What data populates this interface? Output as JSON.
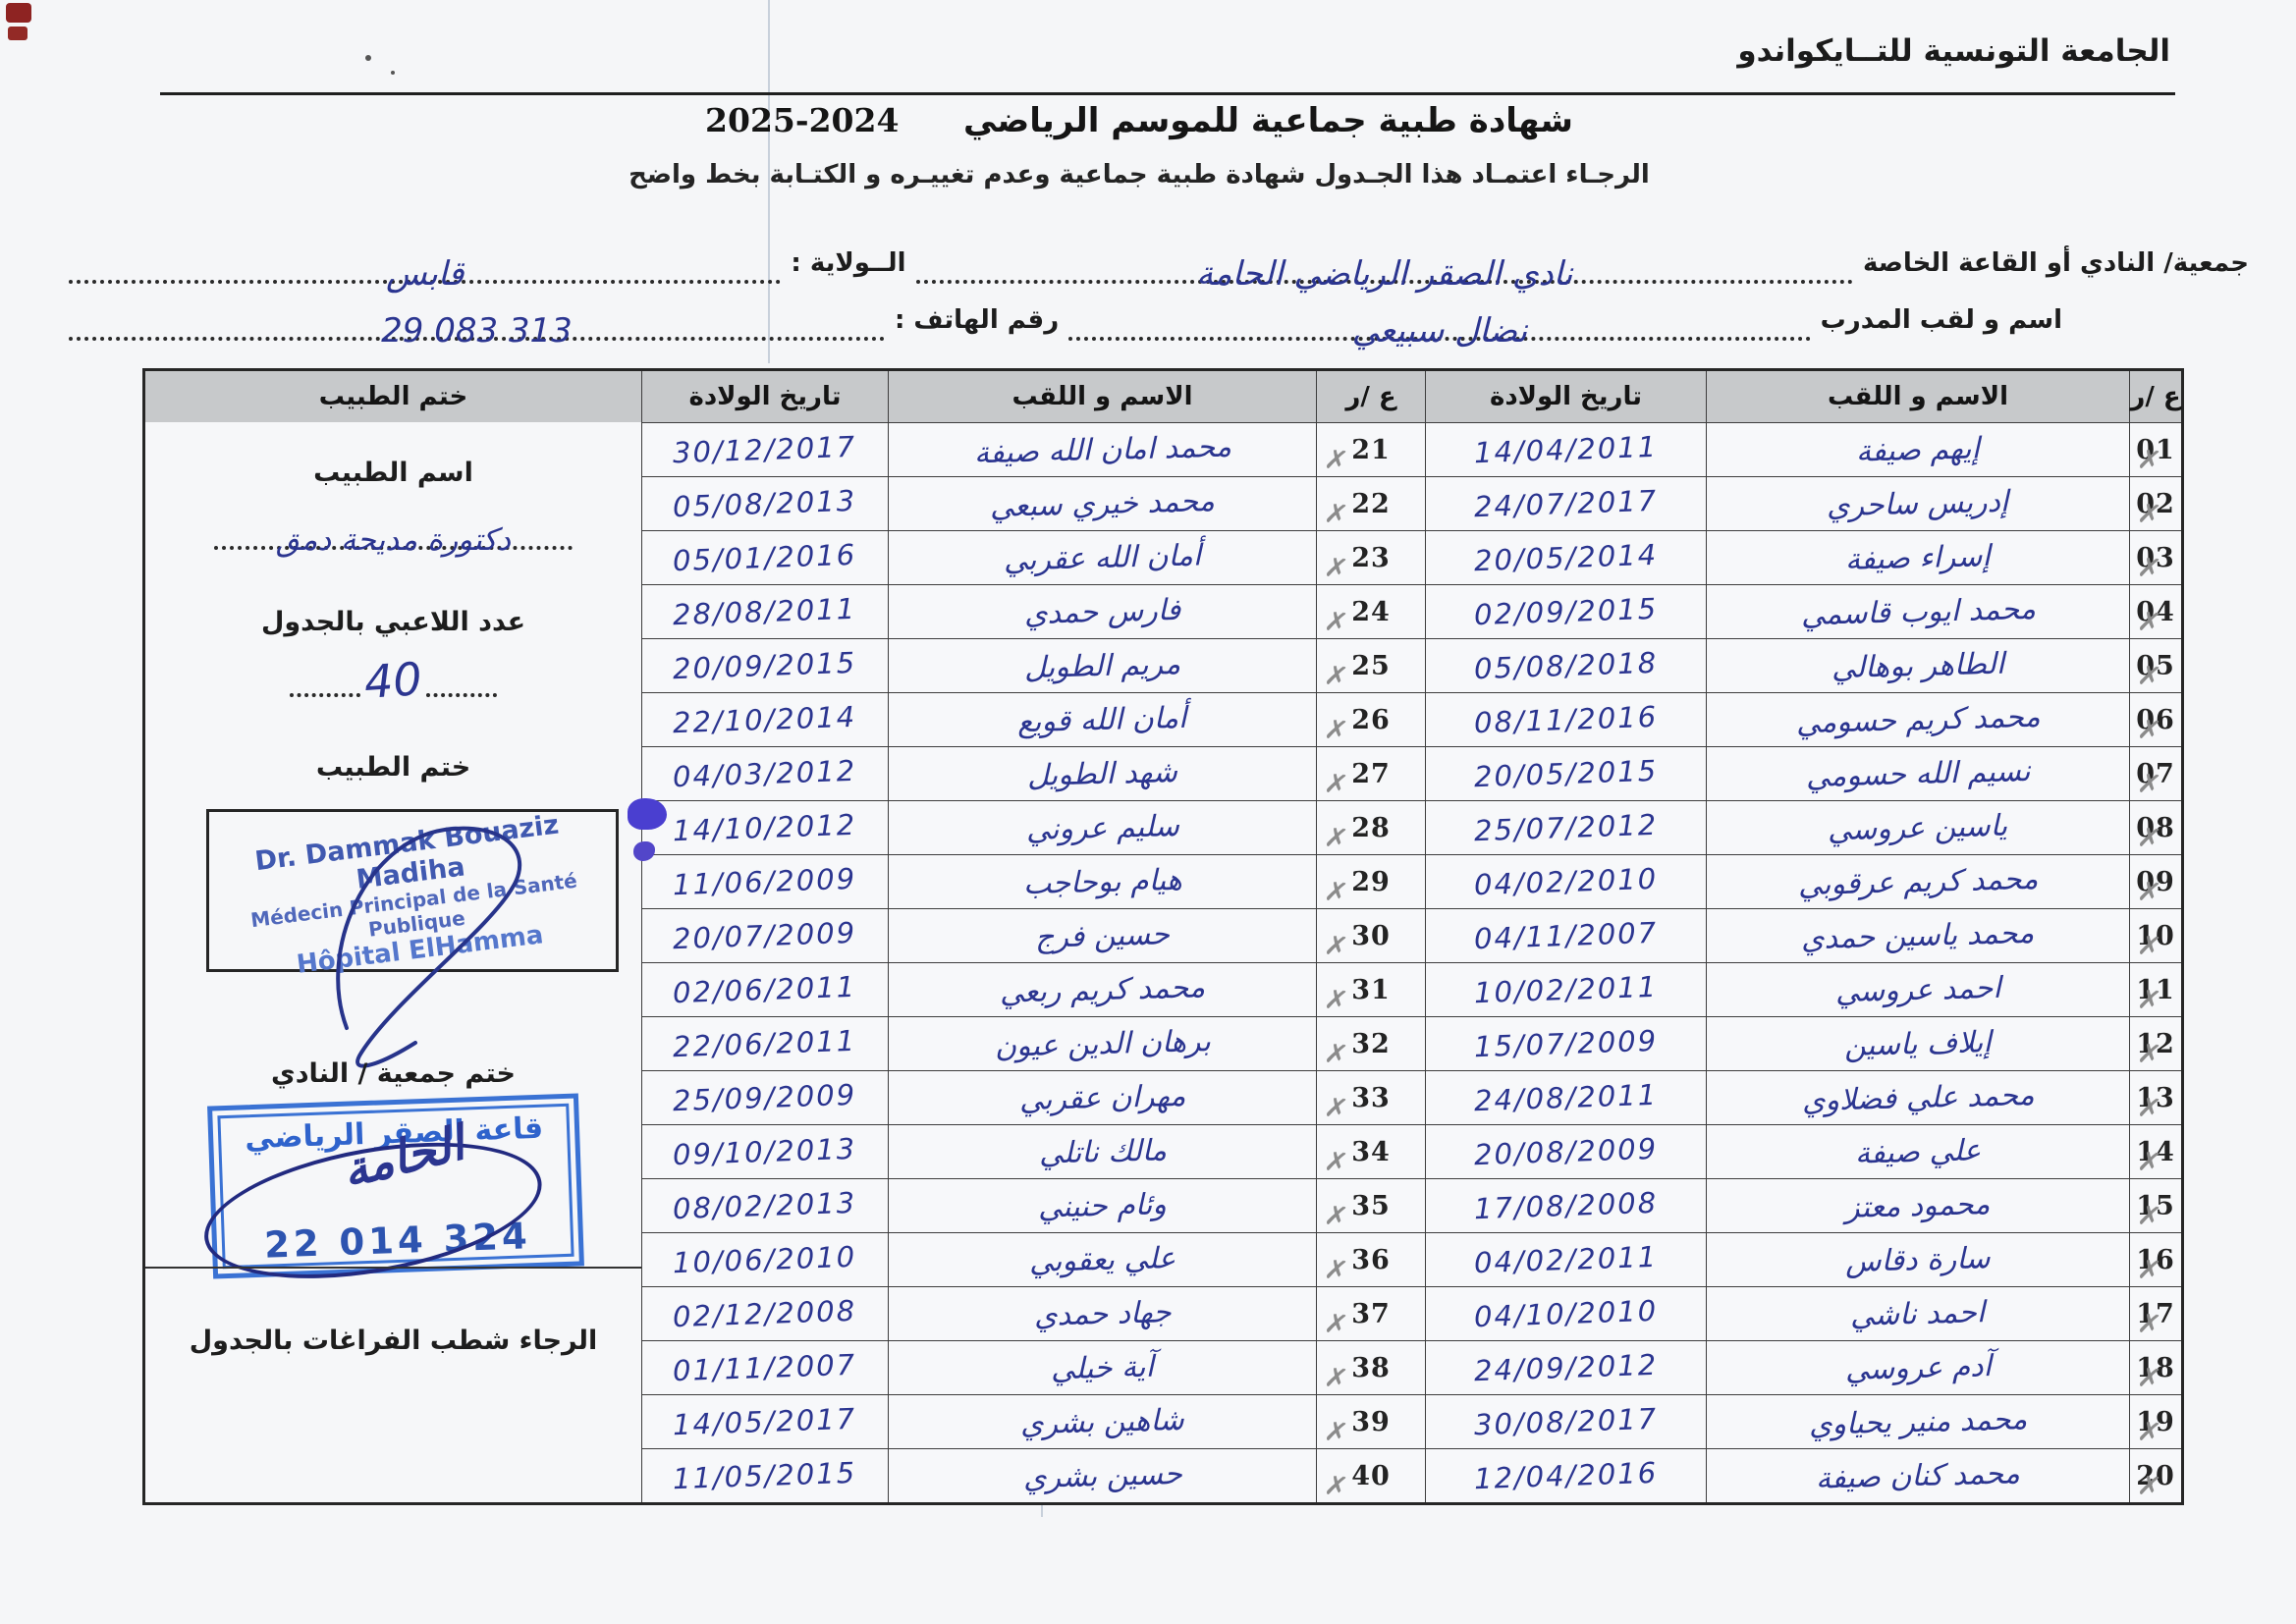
{
  "page": {
    "federation": "الجامعة التونسية للتــايكواندو",
    "title": "شهادة طبية جماعية  للموسم الرياضي",
    "season": "2025-2024",
    "instruction": "الرجـاء اعتمـاد هذا الجـدول  شهادة طبية جماعية وعدم تغييـره و الكتـابة بخط واضح",
    "form": {
      "club_label": "جمعية/ النادي أو القاعة الخاصة",
      "club_value": "نادي الصقر الرياضي الحامة",
      "state_label": "الــولاية :",
      "state_value": "قابس",
      "coach_label": "اسم و لقب المدرب",
      "coach_value": "نضال سبيعي",
      "phone_label": "رقم الهاتف :",
      "phone_value": "29 083 313"
    }
  },
  "table": {
    "headers": {
      "num": "ع /ر",
      "name": "الاسم و اللقب",
      "dob": "تاريخ الولادة",
      "stamp": "ختم الطبيب"
    },
    "mark": "✗",
    "rows_right": [
      {
        "num": "01",
        "name": "إيهم صيفة",
        "dob": "14/04/2011"
      },
      {
        "num": "02",
        "name": "إدريس ساحري",
        "dob": "24/07/2017"
      },
      {
        "num": "03",
        "name": "إسراء صيفة",
        "dob": "20/05/2014"
      },
      {
        "num": "04",
        "name": "محمد ايوب قاسمي",
        "dob": "02/09/2015"
      },
      {
        "num": "05",
        "name": "الطاهر بوهالي",
        "dob": "05/08/2018"
      },
      {
        "num": "06",
        "name": "محمد كريم حسومي",
        "dob": "08/11/2016"
      },
      {
        "num": "07",
        "name": "نسيم الله حسومي",
        "dob": "20/05/2015"
      },
      {
        "num": "08",
        "name": "ياسين عروسي",
        "dob": "25/07/2012"
      },
      {
        "num": "09",
        "name": "محمد كريم عرقوبي",
        "dob": "04/02/2010"
      },
      {
        "num": "10",
        "name": "محمد ياسين حمدي",
        "dob": "04/11/2007"
      },
      {
        "num": "11",
        "name": "احمد عروسي",
        "dob": "10/02/2011"
      },
      {
        "num": "12",
        "name": "إيلاف ياسين",
        "dob": "15/07/2009"
      },
      {
        "num": "13",
        "name": "محمد علي فضلاوي",
        "dob": "24/08/2011"
      },
      {
        "num": "14",
        "name": "علي صيفة",
        "dob": "20/08/2009"
      },
      {
        "num": "15",
        "name": "محمود معتز",
        "dob": "17/08/2008"
      },
      {
        "num": "16",
        "name": "سارة دقاس",
        "dob": "04/02/2011"
      },
      {
        "num": "17",
        "name": "احمد ناشي",
        "dob": "04/10/2010"
      },
      {
        "num": "18",
        "name": "آدم عروسي",
        "dob": "24/09/2012"
      },
      {
        "num": "19",
        "name": "محمد منير يحياوي",
        "dob": "30/08/2017"
      },
      {
        "num": "20",
        "name": "محمد كنان صيفة",
        "dob": "12/04/2016"
      }
    ],
    "rows_left": [
      {
        "num": "21",
        "name": "محمد امان الله صيفة",
        "dob": "30/12/2017"
      },
      {
        "num": "22",
        "name": "محمد خيري سبعي",
        "dob": "05/08/2013"
      },
      {
        "num": "23",
        "name": "أمان الله عقربي",
        "dob": "05/01/2016"
      },
      {
        "num": "24",
        "name": "فارس حمدي",
        "dob": "28/08/2011"
      },
      {
        "num": "25",
        "name": "مريم الطويل",
        "dob": "20/09/2015"
      },
      {
        "num": "26",
        "name": "أمان الله قويع",
        "dob": "22/10/2014"
      },
      {
        "num": "27",
        "name": "شهد الطويل",
        "dob": "04/03/2012"
      },
      {
        "num": "28",
        "name": "سليم عروني",
        "dob": "14/10/2012"
      },
      {
        "num": "29",
        "name": "هيام بوحاجب",
        "dob": "11/06/2009"
      },
      {
        "num": "30",
        "name": "حسين فرج",
        "dob": "20/07/2009"
      },
      {
        "num": "31",
        "name": "محمد كريم ربعي",
        "dob": "02/06/2011"
      },
      {
        "num": "32",
        "name": "برهان الدين عيون",
        "dob": "22/06/2011"
      },
      {
        "num": "33",
        "name": "مهران عقربي",
        "dob": "25/09/2009"
      },
      {
        "num": "34",
        "name": "مالك ناتلي",
        "dob": "09/10/2013"
      },
      {
        "num": "35",
        "name": "وئام حنيني",
        "dob": "08/02/2013"
      },
      {
        "num": "36",
        "name": "علي يعقوبي",
        "dob": "10/06/2010"
      },
      {
        "num": "37",
        "name": "جهاد حمدي",
        "dob": "02/12/2008"
      },
      {
        "num": "38",
        "name": "آية خيلي",
        "dob": "01/11/2007"
      },
      {
        "num": "39",
        "name": "شاهين بشري",
        "dob": "14/05/2017"
      },
      {
        "num": "40",
        "name": "حسين بشري",
        "dob": "11/05/2015"
      }
    ]
  },
  "side_panel": {
    "doctor_name_label": "اسم الطبيب",
    "doctor_name_value": "دكتورة مديحة دمق",
    "players_count_label": "عدد اللاعبي بالجدول",
    "players_count_value": "40",
    "doctor_stamp_label": "ختم الطبيب",
    "doctor_stamp_line1": "Dr. Dammak Bouaziz Madiha",
    "doctor_stamp_line2": "Médecin Principal de la Santé Publique",
    "doctor_stamp_line3": "Hôpital ElHamma",
    "club_stamp_label": "ختم جمعية / النادي",
    "club_stamp_line1": "قاعة الصقر الرياضي",
    "club_stamp_script": "الحامة",
    "club_stamp_number": "22 014 324",
    "note": "الرجاء شطب  الفراغات بالجدول"
  }
}
